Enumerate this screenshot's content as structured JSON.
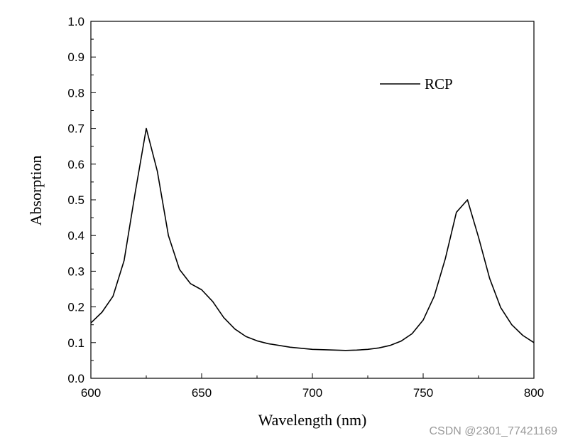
{
  "chart_data": {
    "type": "line",
    "title": "",
    "xlabel": "Wavelength (nm)",
    "ylabel": "Absorption",
    "xlim": [
      600,
      800
    ],
    "ylim": [
      0.0,
      1.0
    ],
    "x_ticks": [
      600,
      650,
      700,
      750,
      800
    ],
    "x_tick_labels": [
      "600",
      "650",
      "700",
      "750",
      "800"
    ],
    "y_ticks": [
      0.0,
      0.1,
      0.2,
      0.3,
      0.4,
      0.5,
      0.6,
      0.7,
      0.8,
      0.9,
      1.0
    ],
    "y_tick_labels": [
      "0.0",
      "0.1",
      "0.2",
      "0.3",
      "0.4",
      "0.5",
      "0.6",
      "0.7",
      "0.8",
      "0.9",
      "1.0"
    ],
    "grid": false,
    "legend_position": "top-right",
    "series": [
      {
        "name": "RCP",
        "color": "#000000",
        "x": [
          600,
          605,
          610,
          615,
          620,
          625,
          630,
          635,
          640,
          645,
          650,
          655,
          660,
          665,
          670,
          675,
          680,
          690,
          700,
          710,
          715,
          720,
          725,
          730,
          735,
          740,
          745,
          750,
          755,
          760,
          765,
          770,
          775,
          780,
          785,
          790,
          795,
          800
        ],
        "y": [
          0.155,
          0.185,
          0.23,
          0.33,
          0.52,
          0.7,
          0.58,
          0.4,
          0.305,
          0.265,
          0.248,
          0.215,
          0.17,
          0.138,
          0.117,
          0.105,
          0.097,
          0.087,
          0.081,
          0.079,
          0.078,
          0.079,
          0.081,
          0.085,
          0.092,
          0.104,
          0.125,
          0.163,
          0.23,
          0.335,
          0.465,
          0.5,
          0.395,
          0.28,
          0.198,
          0.15,
          0.12,
          0.1
        ]
      }
    ]
  },
  "watermark": "CSDN @2301_77421169"
}
